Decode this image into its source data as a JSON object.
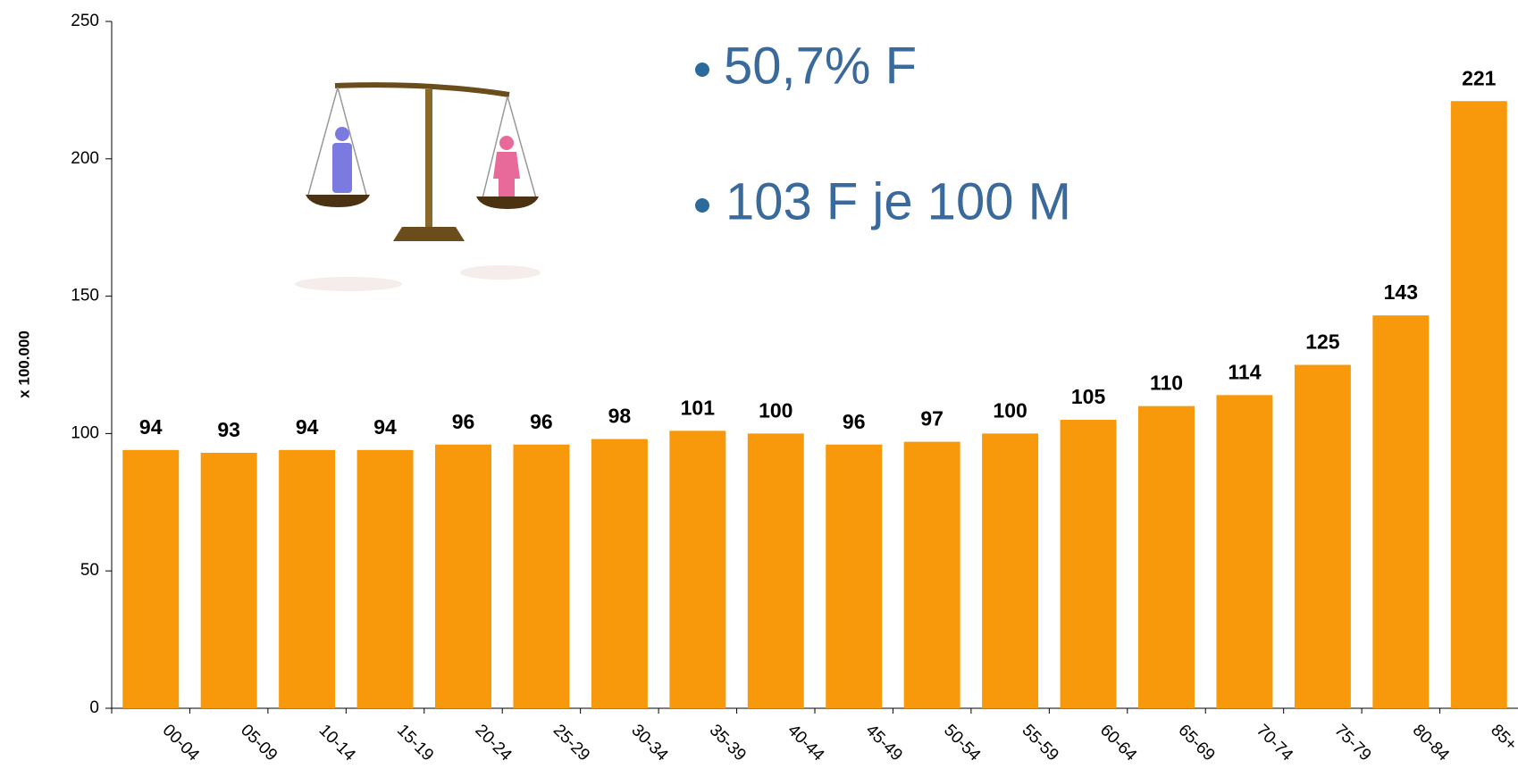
{
  "chart_data": {
    "type": "bar",
    "y_label": "x 100.000",
    "annotations": [
      "50,7%  F",
      "103 F je 100 M"
    ],
    "categories": [
      "00-04",
      "05-09",
      "10-14",
      "15-19",
      "20-24",
      "25-29",
      "30-34",
      "35-39",
      "40-44",
      "45-49",
      "50-54",
      "55-59",
      "60-64",
      "65-69",
      "70-74",
      "75-79",
      "80-84",
      "85+"
    ],
    "values": [
      94,
      93,
      94,
      94,
      96,
      96,
      98,
      101,
      100,
      96,
      97,
      100,
      105,
      110,
      114,
      125,
      143,
      221
    ],
    "color": "#f7990a",
    "ylim": [
      0,
      250
    ],
    "yticks": [
      0,
      50,
      100,
      150,
      200,
      250
    ],
    "grid": false
  }
}
